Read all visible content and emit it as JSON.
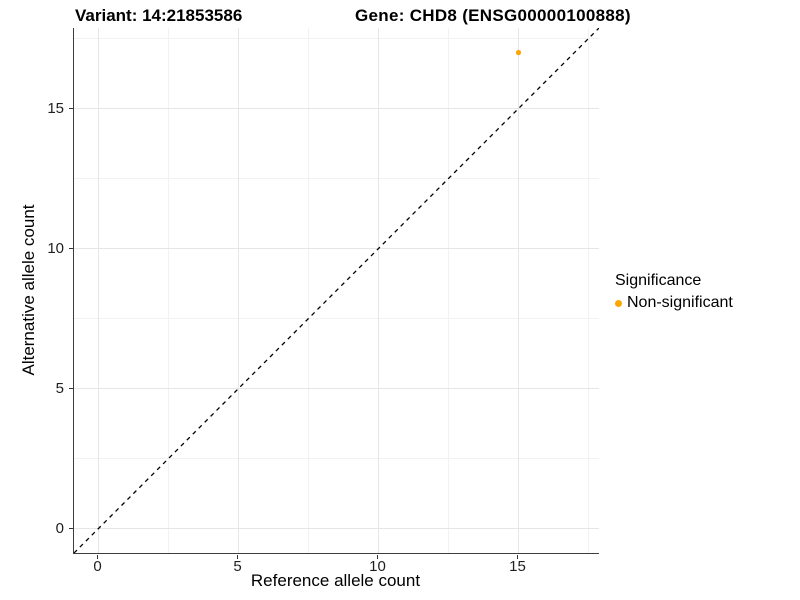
{
  "titles": {
    "left": "Variant: 14:21853586",
    "right": "Gene: CHD8 (ENSG00000100888)"
  },
  "legend": {
    "title": "Significance",
    "items": [
      {
        "label": "Non-significant",
        "color": "#FFA500"
      }
    ]
  },
  "colors": {
    "background": "#ffffff",
    "grid_major": "#e6e6e6",
    "grid_minor": "#f2f2f2",
    "axis_line": "#3d3d3d",
    "tick_mark": "#333333",
    "tick_text": "#1f1f1f",
    "reference_line": "#000000",
    "point": "#FFA500"
  },
  "chart_data": {
    "type": "scatter",
    "title": "Variant: 14:21853586    Gene: CHD8 (ENSG00000100888)",
    "xlabel": "Reference allele count",
    "ylabel": "Alternative allele count",
    "xlim": [
      -0.875,
      17.875
    ],
    "ylim": [
      -0.875,
      17.875
    ],
    "x_ticks": [
      0,
      5,
      10,
      15
    ],
    "y_ticks": [
      0,
      5,
      10,
      15
    ],
    "x_minor_ticks": [
      2.5,
      7.5,
      12.5,
      17.5
    ],
    "y_minor_ticks": [
      2.5,
      7.5,
      12.5,
      17.5
    ],
    "grid": true,
    "legend_position": "right",
    "series": [
      {
        "name": "Non-significant",
        "color": "#FFA500",
        "points": [
          {
            "x": 15,
            "y": 17
          }
        ]
      }
    ],
    "reference_line": {
      "type": "identity",
      "intercept": 0,
      "slope": 1,
      "style": "dashed",
      "color": "#000000"
    }
  }
}
